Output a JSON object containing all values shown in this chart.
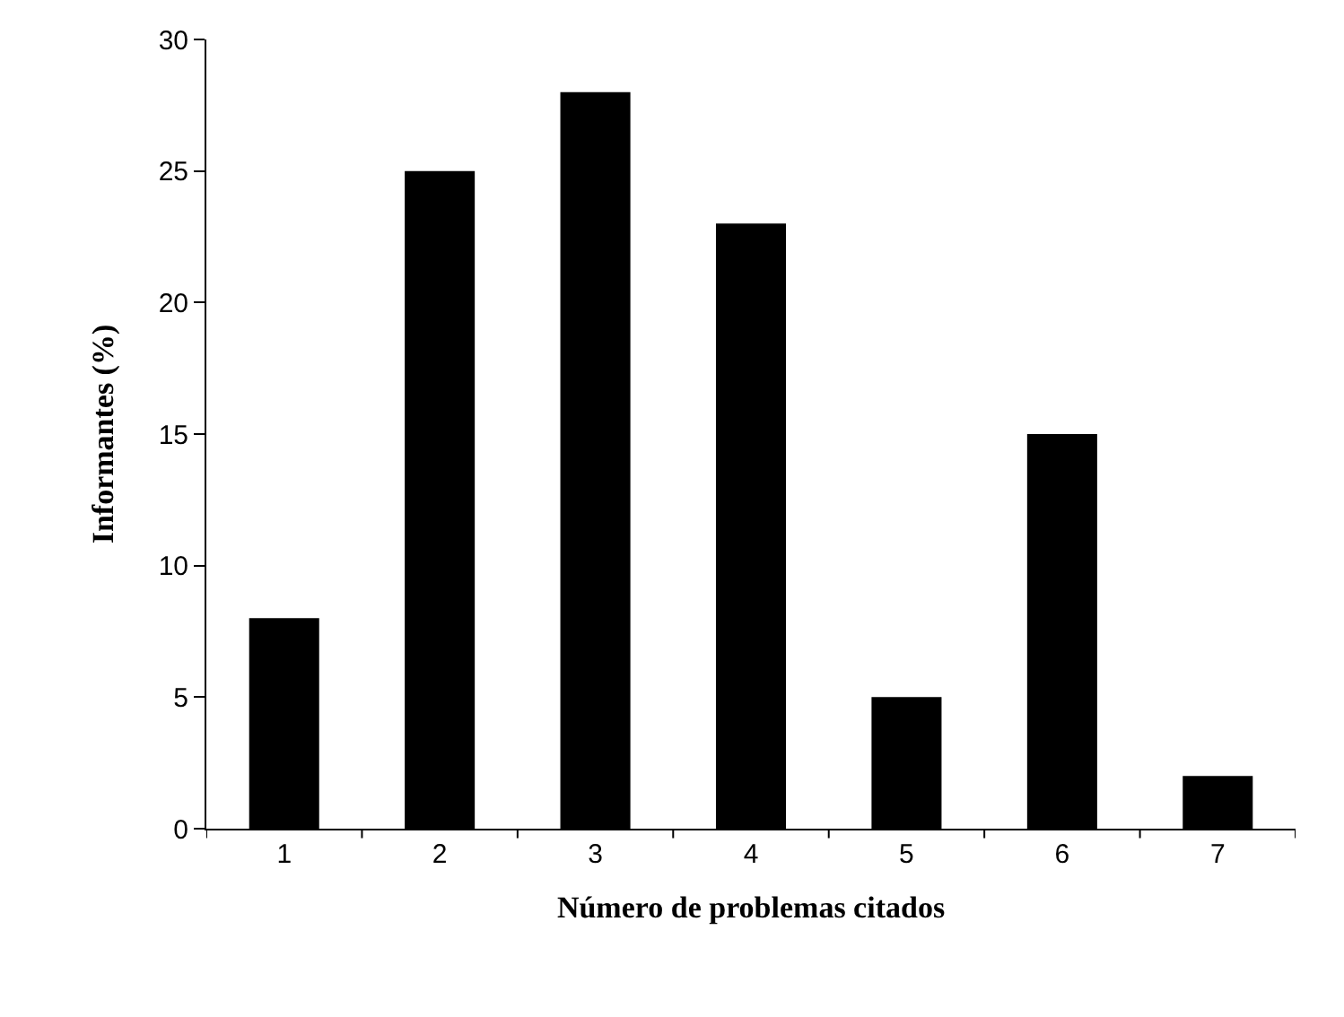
{
  "chart_data": {
    "type": "bar",
    "xlabel": "Número de problemas citados",
    "ylabel": "Informantes (%)",
    "categories": [
      "1",
      "2",
      "3",
      "4",
      "5",
      "6",
      "7"
    ],
    "values": [
      8,
      25,
      28,
      23,
      5,
      15,
      2
    ],
    "color": "#000000",
    "ylim": [
      0,
      30
    ],
    "yticks": [
      0,
      5,
      10,
      15,
      20,
      25,
      30
    ]
  }
}
